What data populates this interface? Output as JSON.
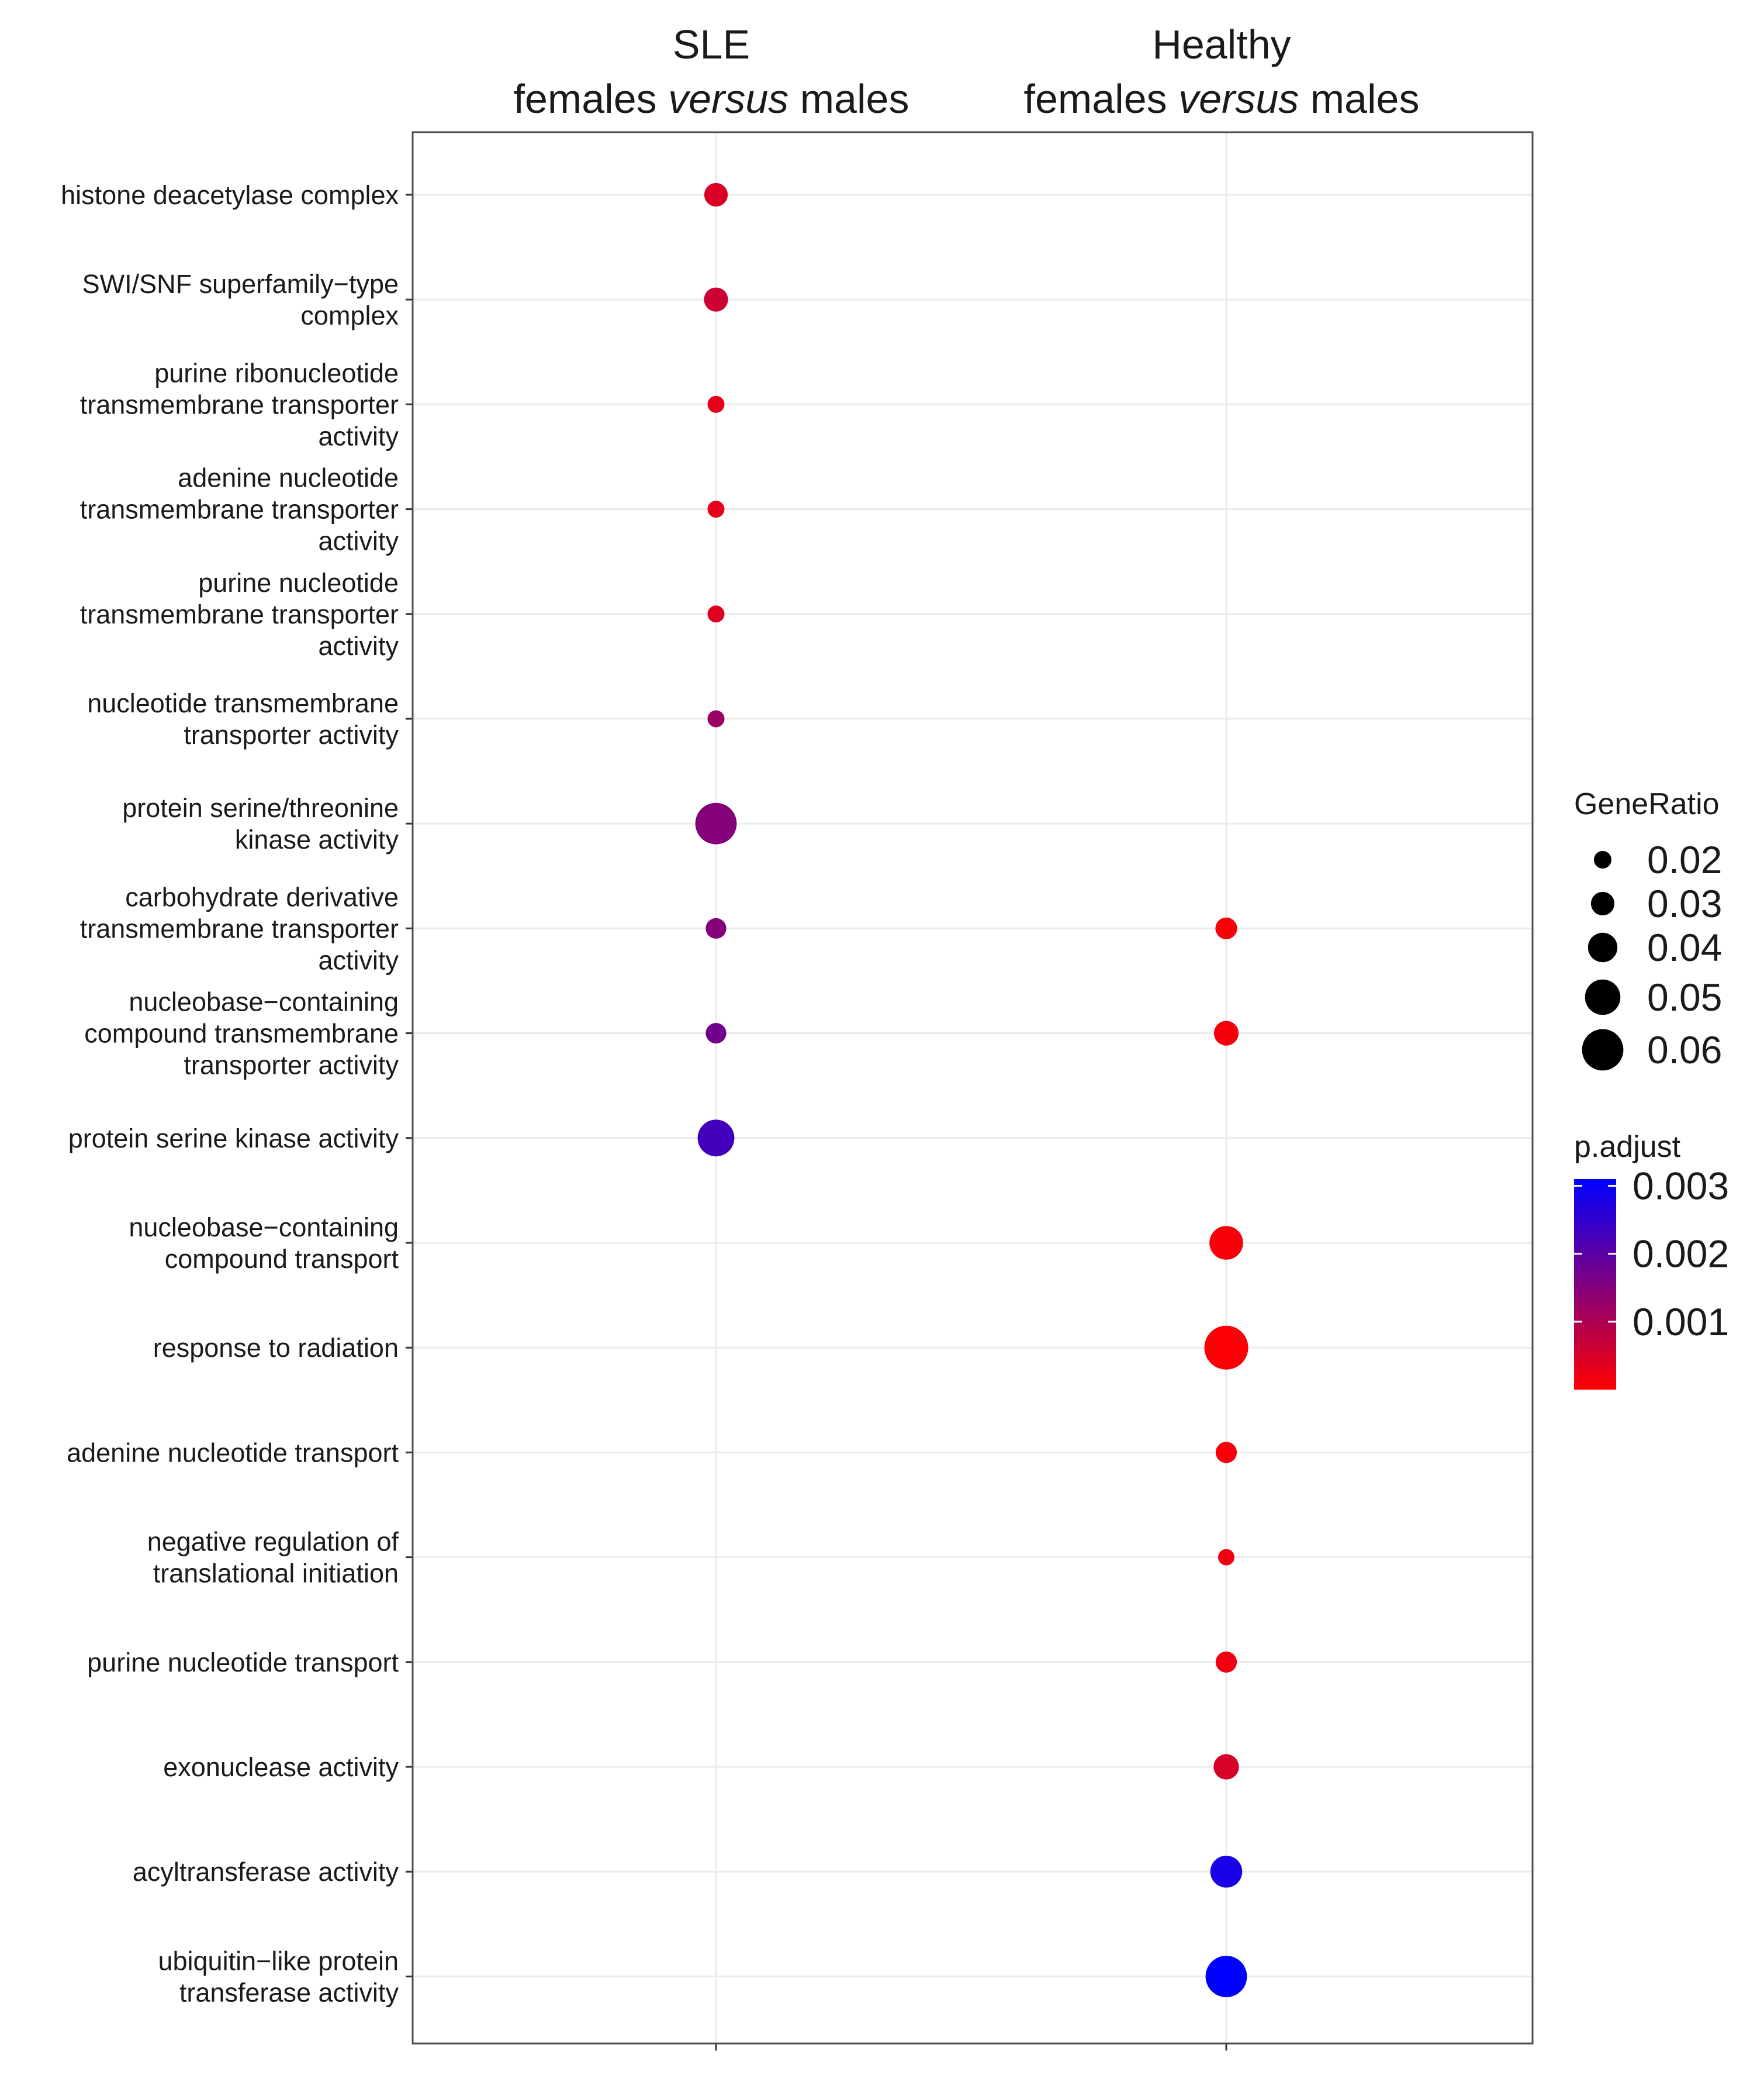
{
  "chart_data": {
    "type": "scatter",
    "subtype": "dot-plot",
    "columns": [
      {
        "line1": "SLE",
        "line2_prefix": "females ",
        "line2_italic": "versus",
        "line2_suffix": " males"
      },
      {
        "line1": "Healthy",
        "line2_prefix": "females ",
        "line2_italic": "versus",
        "line2_suffix": " males"
      }
    ],
    "terms": [
      {
        "lines": [
          "histone deacetylase complex"
        ]
      },
      {
        "lines": [
          "SWI/SNF superfamily−type",
          "complex"
        ]
      },
      {
        "lines": [
          "purine ribonucleotide",
          "transmembrane transporter",
          "activity"
        ]
      },
      {
        "lines": [
          "adenine nucleotide",
          "transmembrane transporter",
          "activity"
        ]
      },
      {
        "lines": [
          "purine nucleotide",
          "transmembrane transporter",
          "activity"
        ]
      },
      {
        "lines": [
          "nucleotide transmembrane",
          "transporter activity"
        ]
      },
      {
        "lines": [
          "protein serine/threonine",
          "kinase activity"
        ]
      },
      {
        "lines": [
          "carbohydrate derivative",
          "transmembrane transporter",
          "activity"
        ]
      },
      {
        "lines": [
          "nucleobase−containing",
          "compound transmembrane",
          "transporter activity"
        ]
      },
      {
        "lines": [
          "protein serine kinase activity"
        ]
      },
      {
        "lines": [
          "nucleobase−containing",
          "compound transport"
        ]
      },
      {
        "lines": [
          "response to radiation"
        ]
      },
      {
        "lines": [
          "adenine nucleotide transport"
        ]
      },
      {
        "lines": [
          "negative regulation of",
          "translational initiation"
        ]
      },
      {
        "lines": [
          "purine nucleotide transport"
        ]
      },
      {
        "lines": [
          "exonuclease activity"
        ]
      },
      {
        "lines": [
          "acyltransferase activity"
        ]
      },
      {
        "lines": [
          "ubiquitin−like protein",
          "transferase activity"
        ]
      }
    ],
    "points": [
      {
        "col": 0,
        "term": 0,
        "gene_ratio": 0.03,
        "p_adjust": 0.00045
      },
      {
        "col": 0,
        "term": 1,
        "gene_ratio": 0.031,
        "p_adjust": 0.0006
      },
      {
        "col": 0,
        "term": 2,
        "gene_ratio": 0.019,
        "p_adjust": 0.0003
      },
      {
        "col": 0,
        "term": 3,
        "gene_ratio": 0.019,
        "p_adjust": 0.0003
      },
      {
        "col": 0,
        "term": 4,
        "gene_ratio": 0.019,
        "p_adjust": 0.0004
      },
      {
        "col": 0,
        "term": 5,
        "gene_ratio": 0.019,
        "p_adjust": 0.0012
      },
      {
        "col": 0,
        "term": 6,
        "gene_ratio": 0.06,
        "p_adjust": 0.0015
      },
      {
        "col": 0,
        "term": 7,
        "gene_ratio": 0.025,
        "p_adjust": 0.0015
      },
      {
        "col": 0,
        "term": 8,
        "gene_ratio": 0.025,
        "p_adjust": 0.0017
      },
      {
        "col": 0,
        "term": 9,
        "gene_ratio": 0.052,
        "p_adjust": 0.0023
      },
      {
        "col": 1,
        "term": 7,
        "gene_ratio": 0.027,
        "p_adjust": 0.0001
      },
      {
        "col": 1,
        "term": 8,
        "gene_ratio": 0.032,
        "p_adjust": 0.00015
      },
      {
        "col": 1,
        "term": 10,
        "gene_ratio": 0.047,
        "p_adjust": 0.0001
      },
      {
        "col": 1,
        "term": 11,
        "gene_ratio": 0.064,
        "p_adjust": 5e-05
      },
      {
        "col": 1,
        "term": 12,
        "gene_ratio": 0.026,
        "p_adjust": 0.0001
      },
      {
        "col": 1,
        "term": 13,
        "gene_ratio": 0.018,
        "p_adjust": 0.0002
      },
      {
        "col": 1,
        "term": 14,
        "gene_ratio": 0.026,
        "p_adjust": 0.0002
      },
      {
        "col": 1,
        "term": 15,
        "gene_ratio": 0.033,
        "p_adjust": 0.0005
      },
      {
        "col": 1,
        "term": 16,
        "gene_ratio": 0.044,
        "p_adjust": 0.0028
      },
      {
        "col": 1,
        "term": 17,
        "gene_ratio": 0.06,
        "p_adjust": 0.0031
      }
    ],
    "size_legend": {
      "title": "GeneRatio",
      "ticks": [
        0.02,
        0.03,
        0.04,
        0.05,
        0.06
      ],
      "labels": [
        "0.02",
        "0.03",
        "0.04",
        "0.05",
        "0.06"
      ]
    },
    "color_legend": {
      "title": "p.adjust",
      "ticks": [
        0.003,
        0.002,
        0.001
      ],
      "labels": [
        "0.003",
        "0.002",
        "0.001"
      ],
      "range": [
        0.0,
        0.0031
      ]
    },
    "colors": {
      "low": "#ff0000",
      "high": "#0000ff",
      "grid": "#ebebeb",
      "panel_border": "#4d4d4d",
      "text": "#1a1a1a",
      "legend_dot": "#000000"
    }
  }
}
